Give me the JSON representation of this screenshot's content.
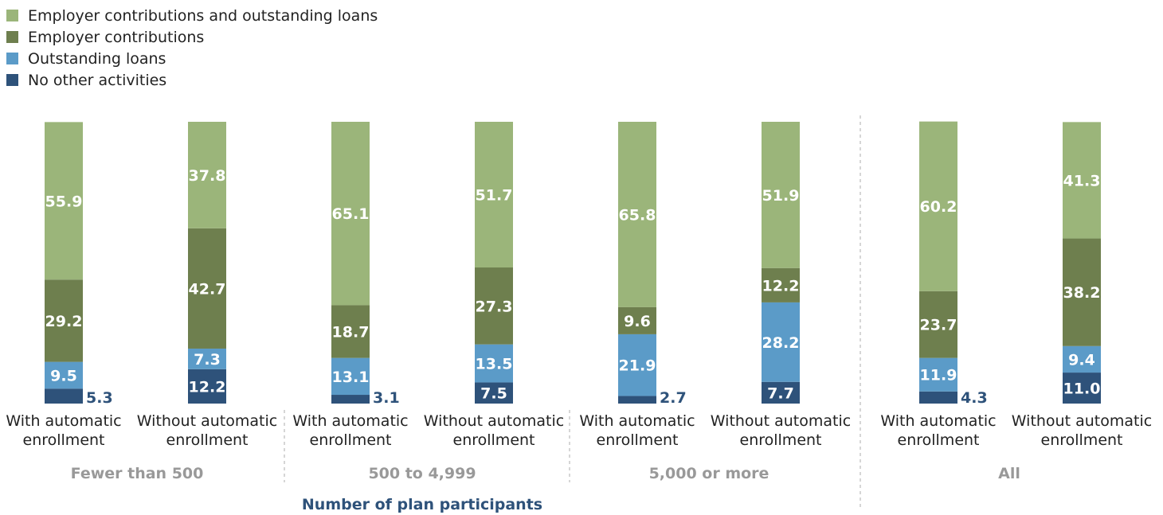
{
  "chart_data": {
    "type": "bar",
    "stacked": true,
    "x_axis_title": "Number of plan participants",
    "legend": {
      "placement": "top-left",
      "entries": [
        {
          "label": "Employer contributions and outstanding loans",
          "color": "#9bb57a"
        },
        {
          "label": "Employer contributions",
          "color": "#6e7f4e"
        },
        {
          "label": "Outstanding loans",
          "color": "#5b9bc8"
        },
        {
          "label": "No other activities",
          "color": "#2e527a"
        }
      ]
    },
    "groups": [
      {
        "label": "Fewer than 500",
        "bars": [
          {
            "label": "With automatic enrollment",
            "values": [
              5.3,
              9.5,
              29.2,
              55.9
            ]
          },
          {
            "label": "Without automatic enrollment",
            "values": [
              12.2,
              7.3,
              42.7,
              37.8
            ]
          }
        ]
      },
      {
        "label": "500 to 4,999",
        "bars": [
          {
            "label": "With automatic enrollment",
            "values": [
              3.1,
              13.1,
              18.7,
              65.1
            ]
          },
          {
            "label": "Without automatic enrollment",
            "values": [
              7.5,
              13.5,
              27.3,
              51.7
            ]
          }
        ]
      },
      {
        "label": "5,000 or more",
        "bars": [
          {
            "label": "With automatic enrollment",
            "values": [
              2.7,
              21.9,
              9.6,
              65.8
            ]
          },
          {
            "label": "Without automatic enrollment",
            "values": [
              7.7,
              28.2,
              12.2,
              51.9
            ]
          }
        ]
      },
      {
        "label": "All",
        "bars": [
          {
            "label": "With automatic enrollment",
            "values": [
              4.3,
              11.9,
              23.7,
              60.2
            ]
          },
          {
            "label": "Without automatic enrollment",
            "values": [
              11.0,
              9.4,
              38.2,
              41.3
            ]
          }
        ]
      }
    ],
    "stack_order": [
      "No other activities",
      "Outstanding loans",
      "Employer contributions",
      "Employer contributions and outstanding loans"
    ],
    "ylim": [
      0,
      100
    ],
    "colors": {
      "label_dark": "#2e527a",
      "group_label": "#999999",
      "divider": "#bbbbbb"
    }
  }
}
